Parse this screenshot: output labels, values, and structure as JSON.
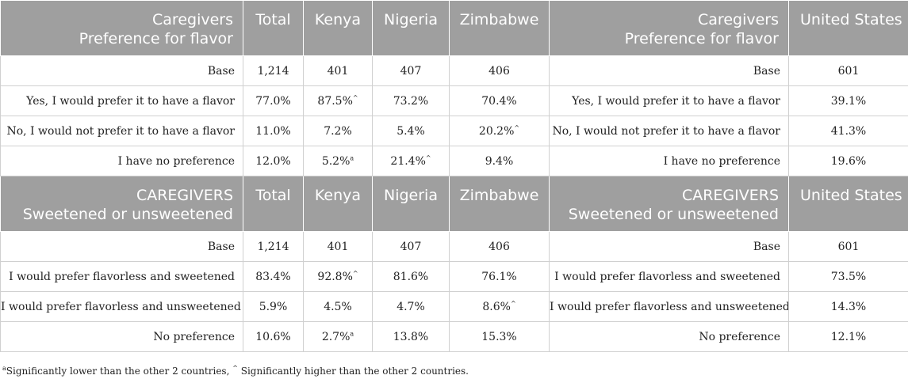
{
  "section1": {
    "header": {
      "label_line1": "Caregivers",
      "label_line2": "Preference for flavor",
      "total": "Total",
      "kenya": "Kenya",
      "nigeria": "Nigeria",
      "zimbabwe": "Zimbabwe",
      "us_label_line1": "Caregivers",
      "us_label_line2": "Preference for flavor",
      "us": "United States"
    },
    "rows": [
      {
        "label": "Base",
        "total": "1,214",
        "kenya": "401",
        "kenya_mark": "",
        "nigeria": "407",
        "nigeria_mark": "",
        "zimbabwe": "406",
        "zimbabwe_mark": "",
        "us_label": "Base",
        "us": "601"
      },
      {
        "label": "Yes, I would prefer it to have a flavor",
        "total": "77.0%",
        "kenya": "87.5%",
        "kenya_mark": "^",
        "nigeria": "73.2%",
        "nigeria_mark": "",
        "zimbabwe": "70.4%",
        "zimbabwe_mark": "",
        "us_label": "Yes, I would prefer it to have a flavor",
        "us": "39.1%"
      },
      {
        "label": "No, I would not prefer it to have a flavor",
        "total": "11.0%",
        "kenya": "7.2%",
        "kenya_mark": "",
        "nigeria": "5.4%",
        "nigeria_mark": "",
        "zimbabwe": "20.2%",
        "zimbabwe_mark": "^",
        "us_label": "No, I would not prefer it to have a flavor",
        "us": "41.3%"
      },
      {
        "label": "I have no preference",
        "total": "12.0%",
        "kenya": "5.2%",
        "kenya_mark": "a",
        "nigeria": "21.4%",
        "nigeria_mark": "^",
        "zimbabwe": "9.4%",
        "zimbabwe_mark": "",
        "us_label": "I have no preference",
        "us": "19.6%"
      }
    ]
  },
  "section2": {
    "header": {
      "label_line1": "CAREGIVERS",
      "label_line2": "Sweetened or unsweetened",
      "total": "Total",
      "kenya": "Kenya",
      "nigeria": "Nigeria",
      "zimbabwe": "Zimbabwe",
      "us_label_line1": "CAREGIVERS",
      "us_label_line2": "Sweetened or unsweetened",
      "us": "United States"
    },
    "rows": [
      {
        "label": "Base",
        "total": "1,214",
        "kenya": "401",
        "kenya_mark": "",
        "nigeria": "407",
        "nigeria_mark": "",
        "zimbabwe": "406",
        "zimbabwe_mark": "",
        "us_label": "Base",
        "us": "601"
      },
      {
        "label": "I would prefer flavorless and sweetened",
        "total": "83.4%",
        "kenya": "92.8%",
        "kenya_mark": "^",
        "nigeria": "81.6%",
        "nigeria_mark": "",
        "zimbabwe": "76.1%",
        "zimbabwe_mark": "",
        "us_label": "I would prefer flavorless and sweetened",
        "us": "73.5%"
      },
      {
        "label": "I would prefer flavorless and unsweetened",
        "total": "5.9%",
        "kenya": "4.5%",
        "kenya_mark": "",
        "nigeria": "4.7%",
        "nigeria_mark": "",
        "zimbabwe": "8.6%",
        "zimbabwe_mark": "^",
        "us_label": "I would prefer flavorless and unsweetened",
        "us": "14.3%"
      },
      {
        "label": "No preference",
        "total": "10.6%",
        "kenya": "2.7%",
        "kenya_mark": "a",
        "nigeria": "13.8%",
        "nigeria_mark": "",
        "zimbabwe": "15.3%",
        "zimbabwe_mark": "",
        "us_label": "No preference",
        "us": "12.1%"
      }
    ]
  },
  "footnote": {
    "mark_a": "a",
    "text_a": "Significantly lower than the other 2 countries, ",
    "mark_hat": "^",
    "text_hat": " Significantly higher than the other 2 countries."
  },
  "colors": {
    "header_bg": "#9f9f9f",
    "header_text": "#ffffff",
    "border": "#d0d0d0"
  }
}
